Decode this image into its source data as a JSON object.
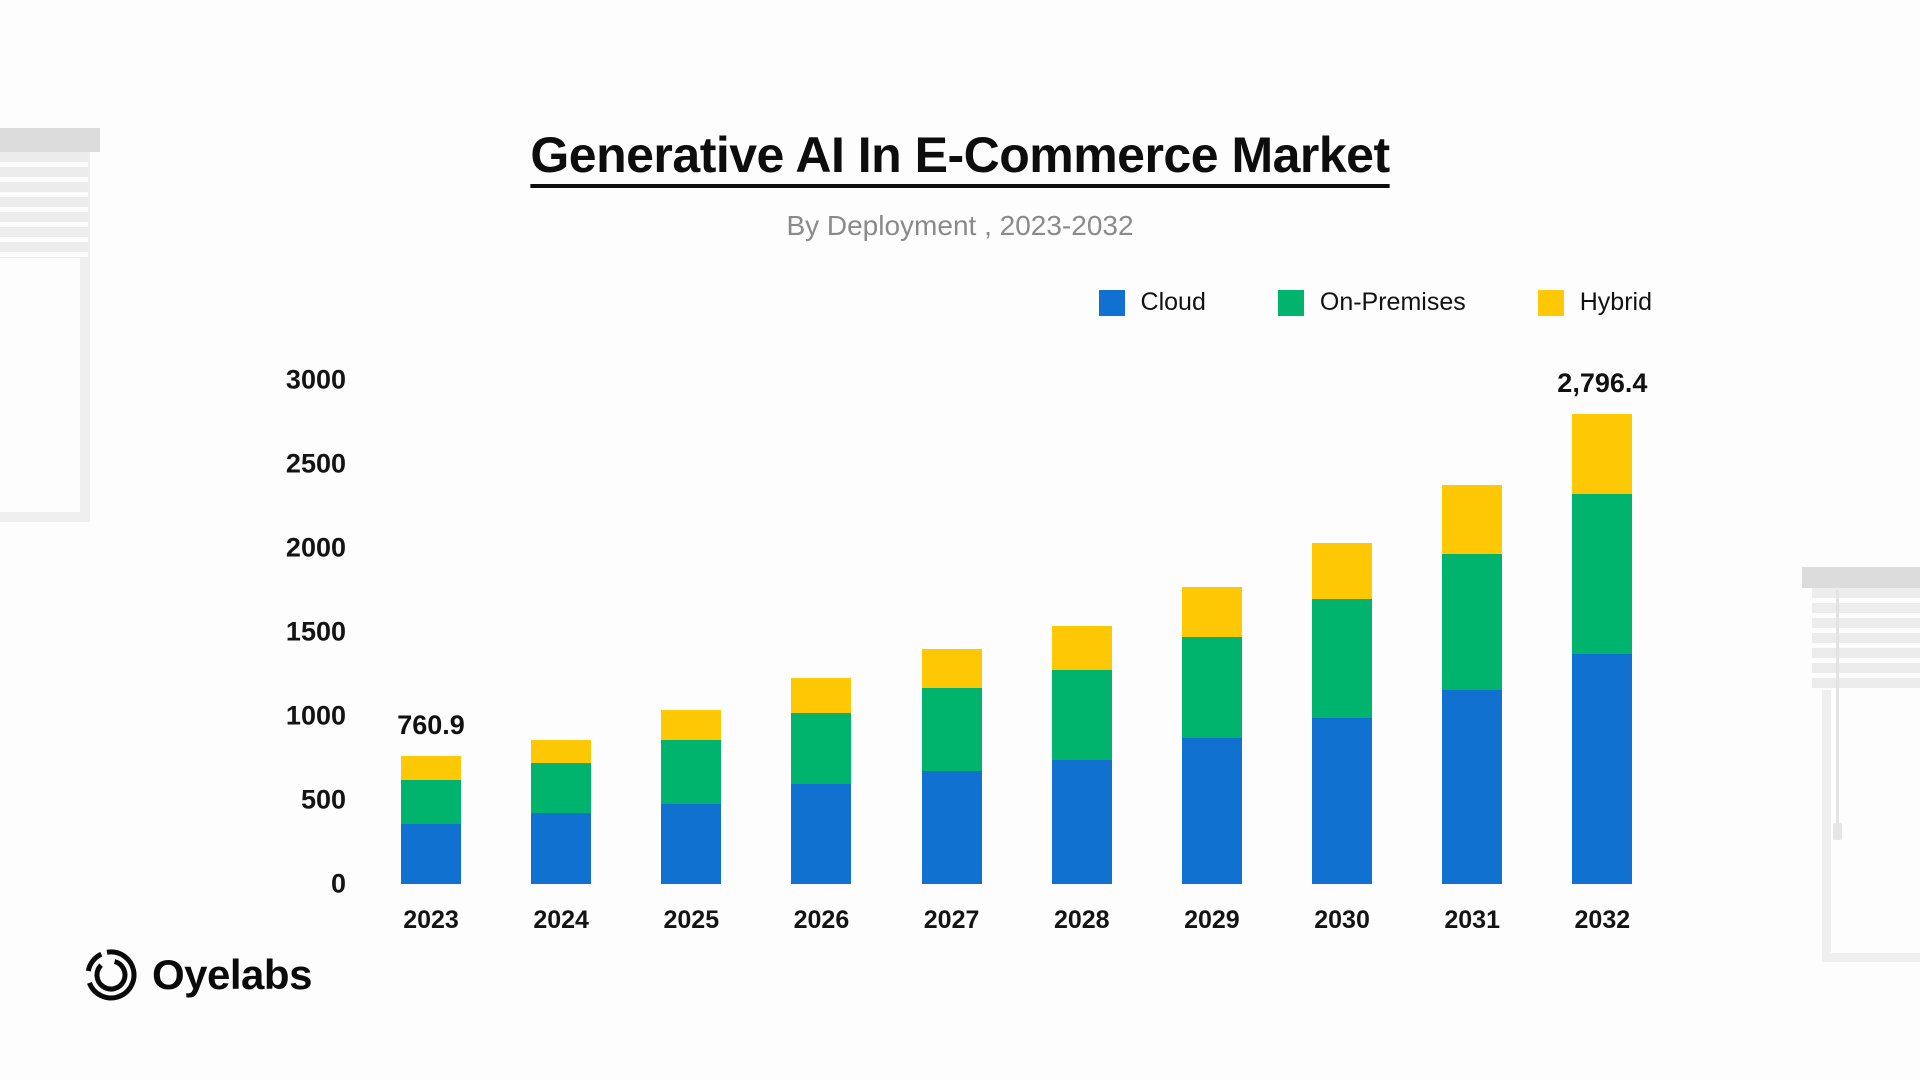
{
  "header": {
    "title": "Generative AI In E-Commerce Market",
    "subtitle": "By Deployment , 2023-2032"
  },
  "logo": {
    "text": "Oyelabs"
  },
  "chart_data": {
    "type": "bar",
    "stacked": true,
    "title": "Generative AI In E-Commerce Market",
    "subtitle": "By Deployment , 2023-2032",
    "categories": [
      "2023",
      "2024",
      "2025",
      "2026",
      "2027",
      "2028",
      "2029",
      "2030",
      "2031",
      "2032"
    ],
    "series": [
      {
        "name": "Cloud",
        "color": "#1171d1",
        "values": [
          356.4,
          420,
          479,
          594,
          673,
          741,
          869,
          988,
          1152,
          1367.0
        ]
      },
      {
        "name": "On-Premises",
        "color": "#00b46e",
        "values": [
          261.4,
          303,
          381,
          424,
          493,
          535,
          604,
          709,
          812,
          954.0
        ]
      },
      {
        "name": "Hybrid",
        "color": "#ffc805",
        "values": [
          143.1,
          137,
          178,
          210,
          230,
          261,
          293,
          333,
          410,
          475.4
        ]
      }
    ],
    "bar_total_labels": [
      {
        "category": "2023",
        "text": "760.9"
      },
      {
        "category": "2032",
        "text": "2,796.4"
      }
    ],
    "xlabel": "",
    "ylabel": "",
    "ylim": [
      0,
      3000
    ],
    "yticks": [
      0,
      500,
      1000,
      1500,
      2000,
      2500,
      3000
    ],
    "grid": false,
    "legend_position": "top-right"
  }
}
